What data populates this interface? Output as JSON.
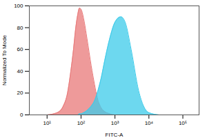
{
  "chart_data": {
    "type": "area",
    "log": "x",
    "x_label": "FITC-A",
    "y_label": "Normalized To Mode",
    "x": [
      10,
      20,
      30,
      40,
      50,
      60,
      70,
      80,
      90,
      100,
      120,
      150,
      200,
      250,
      300,
      400,
      500,
      700,
      1000,
      1500,
      2000,
      3000,
      5000,
      7000,
      10000,
      20000
    ],
    "series": [
      {
        "color": "#e87878",
        "values": [
          0,
          2,
          8,
          20,
          40,
          60,
          80,
          92,
          98,
          97,
          88,
          70,
          45,
          28,
          16,
          6,
          3,
          1,
          0,
          0,
          0,
          0,
          0,
          0,
          0,
          0
        ]
      },
      {
        "color": "#3ccbea",
        "values": [
          0,
          0,
          0,
          0,
          0,
          0,
          0,
          0,
          1,
          1,
          2,
          4,
          8,
          13,
          20,
          35,
          50,
          70,
          85,
          90,
          85,
          60,
          22,
          8,
          2,
          0
        ]
      }
    ],
    "xlim": [
      3,
      300000
    ],
    "xticks": [
      {
        "value": 10,
        "label": "10¹"
      },
      {
        "value": 100,
        "label": "10²"
      },
      {
        "value": 1000,
        "label": "10³"
      },
      {
        "value": 10000,
        "label": "10⁴"
      },
      {
        "value": 100000,
        "label": "10⁵"
      }
    ],
    "ylim": [
      0,
      100
    ],
    "yticks": [
      0,
      20,
      40,
      60,
      80,
      100
    ],
    "grid": false
  }
}
